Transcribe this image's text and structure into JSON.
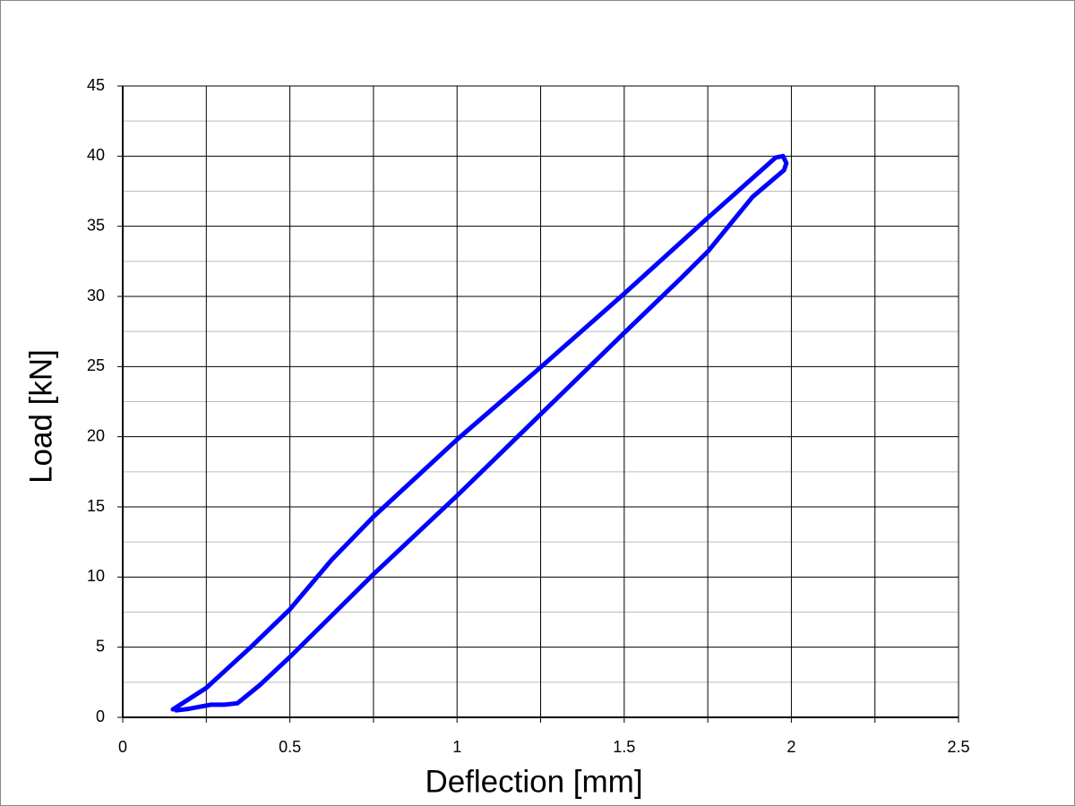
{
  "chart_data": {
    "type": "line",
    "x_label": "Deflection [mm]",
    "y_label": "Load [kN]",
    "x": [
      0.15,
      0.25,
      0.383,
      0.5,
      0.624,
      0.75,
      1.0,
      1.25,
      1.5,
      1.75,
      1.953,
      1.975,
      1.985,
      1.978,
      1.884,
      1.75,
      1.67,
      1.5,
      1.25,
      1.0,
      0.75,
      0.5,
      0.41,
      0.343,
      0.303,
      0.263,
      0.196,
      0.16
    ],
    "values": [
      0.57,
      2.1,
      5.0,
      7.7,
      11.2,
      14.3,
      19.8,
      24.95,
      30.2,
      35.6,
      39.9,
      40.0,
      39.5,
      39.0,
      37.1,
      33.2,
      31.3,
      27.4,
      21.6,
      15.8,
      10.2,
      4.3,
      2.3,
      1.0,
      0.9,
      0.9,
      0.6,
      0.5
    ],
    "color": "#0000ff",
    "xlim": [
      0,
      2.5
    ],
    "xticks": [
      0,
      0.5,
      1,
      1.5,
      2,
      2.5
    ],
    "ylim": [
      0,
      45
    ],
    "yticks": [
      0,
      5,
      10,
      15,
      20,
      25,
      30,
      35,
      40,
      45
    ],
    "grid": true
  }
}
